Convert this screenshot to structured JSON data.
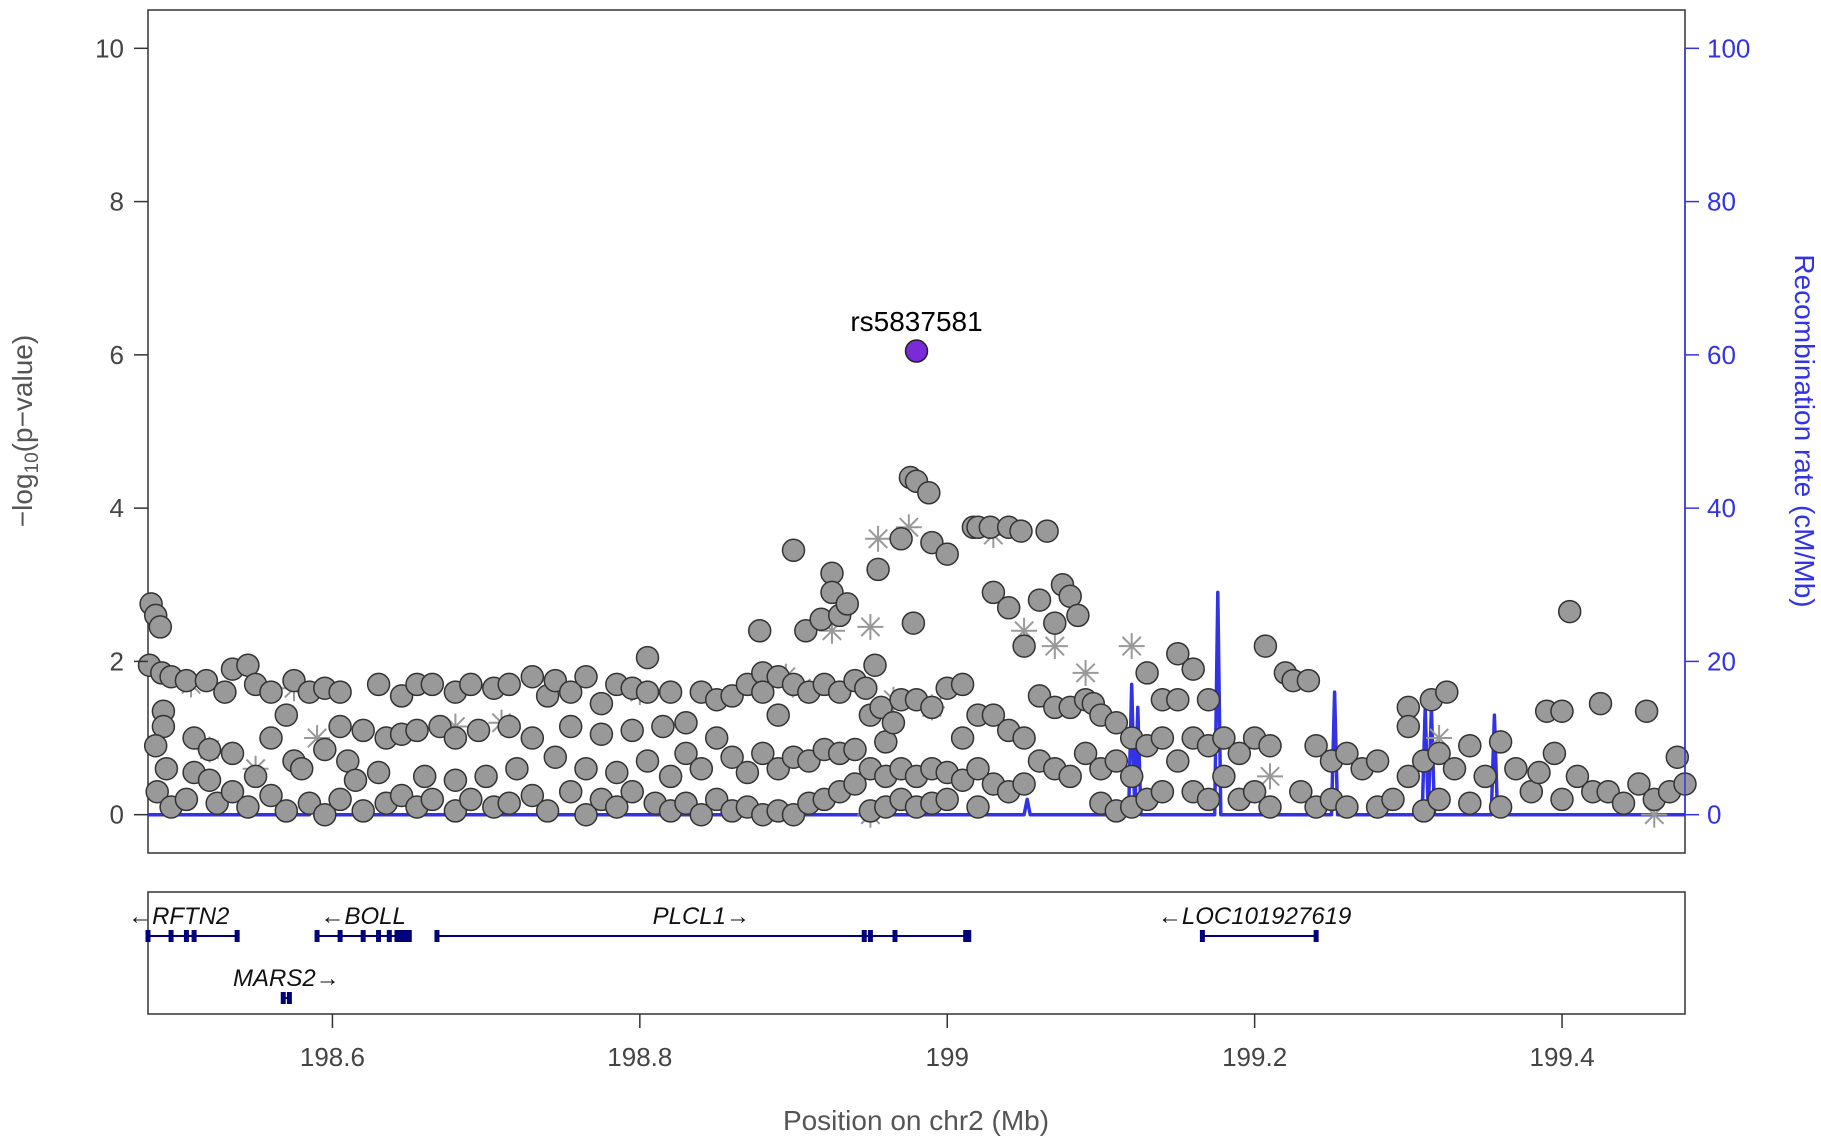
{
  "chart_data": {
    "type": "scatter",
    "xlabel": "Position on chr2 (Mb)",
    "ylabel_main": "−log",
    "ylabel_sub": "10",
    "ylabel_tail": "(p−value)",
    "y2label": "Recombination rate (cM/Mb)",
    "xlim": [
      198.48,
      199.48
    ],
    "ylim": [
      -0.5,
      10.5
    ],
    "y2lim": [
      -5,
      105
    ],
    "x_ticks": [
      "198.6",
      "198.8",
      "199",
      "199.2",
      "199.4"
    ],
    "x_tick_values": [
      198.6,
      198.8,
      199.0,
      199.2,
      199.4
    ],
    "y_ticks": [
      "0",
      "2",
      "4",
      "6",
      "8",
      "10"
    ],
    "y_tick_values": [
      0,
      2,
      4,
      6,
      8,
      10
    ],
    "y2_ticks": [
      "0",
      "20",
      "40",
      "60",
      "80",
      "100"
    ],
    "y2_tick_values": [
      0,
      20,
      40,
      60,
      80,
      100
    ],
    "colors": {
      "point_fill": "#999999",
      "point_edge": "#333333",
      "lead_fill": "#7a2ad6",
      "recomb": "#3333e6",
      "axis2": "#3333e6",
      "gene": "#00007a",
      "asterisk": "#999999"
    },
    "lead_snp": {
      "label": "rs5837581",
      "x": 198.98,
      "y": 6.05
    },
    "recombination": [
      {
        "x": 198.48,
        "y": 0
      },
      {
        "x": 198.585,
        "y": 0
      },
      {
        "x": 198.587,
        "y": 0.8
      },
      {
        "x": 198.589,
        "y": 0
      },
      {
        "x": 198.68,
        "y": 0
      },
      {
        "x": 198.682,
        "y": 0.9
      },
      {
        "x": 198.684,
        "y": 0
      },
      {
        "x": 198.78,
        "y": 0
      },
      {
        "x": 198.785,
        "y": 1.5
      },
      {
        "x": 198.79,
        "y": 0
      },
      {
        "x": 198.95,
        "y": 0
      },
      {
        "x": 198.952,
        "y": 1.0
      },
      {
        "x": 198.954,
        "y": 0
      },
      {
        "x": 199.05,
        "y": 0
      },
      {
        "x": 199.052,
        "y": 2.0
      },
      {
        "x": 199.054,
        "y": 0
      },
      {
        "x": 199.118,
        "y": 0
      },
      {
        "x": 199.12,
        "y": 17
      },
      {
        "x": 199.122,
        "y": 0
      },
      {
        "x": 199.124,
        "y": 14
      },
      {
        "x": 199.126,
        "y": 0
      },
      {
        "x": 199.174,
        "y": 0
      },
      {
        "x": 199.176,
        "y": 29
      },
      {
        "x": 199.178,
        "y": 0
      },
      {
        "x": 199.25,
        "y": 0
      },
      {
        "x": 199.252,
        "y": 16
      },
      {
        "x": 199.254,
        "y": 0
      },
      {
        "x": 199.309,
        "y": 0
      },
      {
        "x": 199.311,
        "y": 14
      },
      {
        "x": 199.313,
        "y": 0
      },
      {
        "x": 199.315,
        "y": 14
      },
      {
        "x": 199.317,
        "y": 0
      },
      {
        "x": 199.354,
        "y": 0
      },
      {
        "x": 199.356,
        "y": 13
      },
      {
        "x": 199.358,
        "y": 0
      },
      {
        "x": 199.48,
        "y": 0
      }
    ],
    "points": [
      [
        198.482,
        2.75
      ],
      [
        198.485,
        2.6
      ],
      [
        198.488,
        2.45
      ],
      [
        198.481,
        1.95
      ],
      [
        198.489,
        1.85
      ],
      [
        198.495,
        1.8
      ],
      [
        198.49,
        1.35
      ],
      [
        198.49,
        1.15
      ],
      [
        198.485,
        0.9
      ],
      [
        198.492,
        0.6
      ],
      [
        198.486,
        0.3
      ],
      [
        198.495,
        0.1
      ],
      [
        198.505,
        1.75
      ],
      [
        198.51,
        1.0
      ],
      [
        198.51,
        0.55
      ],
      [
        198.505,
        0.2
      ],
      [
        198.518,
        1.75
      ],
      [
        198.52,
        0.85
      ],
      [
        198.52,
        0.45
      ],
      [
        198.525,
        0.15
      ],
      [
        198.535,
        1.9
      ],
      [
        198.53,
        1.6
      ],
      [
        198.535,
        0.8
      ],
      [
        198.535,
        0.3
      ],
      [
        198.545,
        1.95
      ],
      [
        198.55,
        1.7
      ],
      [
        198.55,
        0.5
      ],
      [
        198.545,
        0.1
      ],
      [
        198.56,
        1.6
      ],
      [
        198.56,
        1.0
      ],
      [
        198.56,
        0.25
      ],
      [
        198.57,
        1.3
      ],
      [
        198.575,
        1.75
      ],
      [
        198.575,
        0.7
      ],
      [
        198.57,
        0.05
      ],
      [
        198.585,
        1.6
      ],
      [
        198.58,
        0.6
      ],
      [
        198.585,
        0.15
      ],
      [
        198.595,
        1.65
      ],
      [
        198.595,
        0.85
      ],
      [
        198.595,
        0.0
      ],
      [
        198.605,
        1.6
      ],
      [
        198.605,
        1.15
      ],
      [
        198.61,
        0.7
      ],
      [
        198.605,
        0.2
      ],
      [
        198.62,
        1.1
      ],
      [
        198.615,
        0.45
      ],
      [
        198.62,
        0.05
      ],
      [
        198.63,
        1.7
      ],
      [
        198.635,
        1.0
      ],
      [
        198.63,
        0.55
      ],
      [
        198.635,
        0.15
      ],
      [
        198.645,
        1.55
      ],
      [
        198.645,
        1.05
      ],
      [
        198.645,
        0.25
      ],
      [
        198.655,
        1.7
      ],
      [
        198.655,
        1.1
      ],
      [
        198.66,
        0.5
      ],
      [
        198.655,
        0.1
      ],
      [
        198.665,
        1.7
      ],
      [
        198.67,
        1.15
      ],
      [
        198.665,
        0.2
      ],
      [
        198.68,
        1.6
      ],
      [
        198.68,
        1.0
      ],
      [
        198.68,
        0.45
      ],
      [
        198.68,
        0.05
      ],
      [
        198.69,
        1.7
      ],
      [
        198.695,
        1.1
      ],
      [
        198.69,
        0.2
      ],
      [
        198.705,
        1.65
      ],
      [
        198.7,
        0.5
      ],
      [
        198.705,
        0.1
      ],
      [
        198.715,
        1.7
      ],
      [
        198.715,
        1.15
      ],
      [
        198.72,
        0.6
      ],
      [
        198.715,
        0.15
      ],
      [
        198.73,
        1.8
      ],
      [
        198.73,
        1.0
      ],
      [
        198.73,
        0.25
      ],
      [
        198.74,
        1.55
      ],
      [
        198.745,
        1.75
      ],
      [
        198.745,
        0.75
      ],
      [
        198.74,
        0.05
      ],
      [
        198.755,
        1.6
      ],
      [
        198.755,
        1.15
      ],
      [
        198.755,
        0.3
      ],
      [
        198.765,
        1.8
      ],
      [
        198.765,
        0.6
      ],
      [
        198.765,
        0.0
      ],
      [
        198.775,
        1.45
      ],
      [
        198.775,
        1.05
      ],
      [
        198.775,
        0.2
      ],
      [
        198.785,
        1.7
      ],
      [
        198.785,
        0.55
      ],
      [
        198.785,
        0.1
      ],
      [
        198.795,
        1.65
      ],
      [
        198.795,
        1.1
      ],
      [
        198.795,
        0.3
      ],
      [
        198.805,
        2.05
      ],
      [
        198.805,
        1.6
      ],
      [
        198.805,
        0.7
      ],
      [
        198.81,
        0.15
      ],
      [
        198.815,
        1.15
      ],
      [
        198.82,
        1.6
      ],
      [
        198.82,
        0.5
      ],
      [
        198.82,
        0.05
      ],
      [
        198.83,
        1.2
      ],
      [
        198.83,
        0.8
      ],
      [
        198.83,
        0.15
      ],
      [
        198.84,
        1.6
      ],
      [
        198.84,
        0.6
      ],
      [
        198.84,
        0.0
      ],
      [
        198.85,
        1.5
      ],
      [
        198.85,
        1.0
      ],
      [
        198.85,
        0.2
      ],
      [
        198.86,
        1.55
      ],
      [
        198.86,
        0.75
      ],
      [
        198.86,
        0.05
      ],
      [
        198.87,
        1.7
      ],
      [
        198.87,
        0.55
      ],
      [
        198.87,
        0.1
      ],
      [
        198.878,
        2.4
      ],
      [
        198.88,
        1.85
      ],
      [
        198.88,
        1.6
      ],
      [
        198.88,
        0.8
      ],
      [
        198.88,
        0.0
      ],
      [
        198.89,
        1.8
      ],
      [
        198.89,
        1.3
      ],
      [
        198.89,
        0.6
      ],
      [
        198.89,
        0.05
      ],
      [
        198.9,
        3.45
      ],
      [
        198.9,
        1.7
      ],
      [
        198.9,
        0.75
      ],
      [
        198.9,
        0.0
      ],
      [
        198.908,
        2.4
      ],
      [
        198.91,
        1.6
      ],
      [
        198.91,
        0.7
      ],
      [
        198.91,
        0.15
      ],
      [
        198.918,
        2.55
      ],
      [
        198.92,
        1.7
      ],
      [
        198.92,
        0.85
      ],
      [
        198.92,
        0.2
      ],
      [
        198.925,
        3.15
      ],
      [
        198.925,
        2.9
      ],
      [
        198.93,
        2.6
      ],
      [
        198.93,
        1.6
      ],
      [
        198.93,
        0.8
      ],
      [
        198.93,
        0.3
      ],
      [
        198.935,
        2.75
      ],
      [
        198.94,
        1.75
      ],
      [
        198.94,
        0.85
      ],
      [
        198.94,
        0.4
      ],
      [
        198.947,
        1.65
      ],
      [
        198.95,
        1.3
      ],
      [
        198.95,
        0.6
      ],
      [
        198.95,
        0.05
      ],
      [
        198.953,
        1.95
      ],
      [
        198.955,
        3.2
      ],
      [
        198.957,
        1.4
      ],
      [
        198.96,
        0.95
      ],
      [
        198.96,
        0.5
      ],
      [
        198.96,
        0.1
      ],
      [
        198.965,
        1.2
      ],
      [
        198.97,
        3.6
      ],
      [
        198.97,
        1.5
      ],
      [
        198.97,
        0.6
      ],
      [
        198.97,
        0.2
      ],
      [
        198.976,
        4.4
      ],
      [
        198.978,
        2.5
      ],
      [
        198.98,
        4.35
      ],
      [
        198.98,
        1.5
      ],
      [
        198.98,
        0.5
      ],
      [
        198.98,
        0.1
      ],
      [
        198.988,
        4.2
      ],
      [
        198.99,
        3.55
      ],
      [
        198.99,
        1.4
      ],
      [
        198.99,
        0.6
      ],
      [
        198.99,
        0.15
      ],
      [
        199.0,
        3.4
      ],
      [
        199.0,
        1.65
      ],
      [
        199.0,
        0.55
      ],
      [
        199.0,
        0.2
      ],
      [
        199.01,
        1.7
      ],
      [
        199.01,
        1.0
      ],
      [
        199.01,
        0.45
      ],
      [
        199.017,
        3.75
      ],
      [
        199.02,
        3.75
      ],
      [
        199.02,
        1.3
      ],
      [
        199.02,
        0.6
      ],
      [
        199.02,
        0.1
      ],
      [
        199.028,
        3.75
      ],
      [
        199.03,
        2.9
      ],
      [
        199.03,
        1.3
      ],
      [
        199.03,
        0.4
      ],
      [
        199.04,
        3.75
      ],
      [
        199.04,
        2.7
      ],
      [
        199.04,
        1.1
      ],
      [
        199.04,
        0.3
      ],
      [
        199.048,
        3.7
      ],
      [
        199.05,
        2.2
      ],
      [
        199.05,
        1.0
      ],
      [
        199.05,
        0.4
      ],
      [
        199.06,
        2.8
      ],
      [
        199.06,
        1.55
      ],
      [
        199.06,
        0.7
      ],
      [
        199.065,
        3.7
      ],
      [
        199.07,
        2.5
      ],
      [
        199.07,
        1.4
      ],
      [
        199.07,
        0.6
      ],
      [
        199.075,
        3.0
      ],
      [
        199.08,
        2.85
      ],
      [
        199.08,
        1.4
      ],
      [
        199.08,
        0.5
      ],
      [
        199.085,
        2.6
      ],
      [
        199.09,
        1.5
      ],
      [
        199.09,
        0.8
      ],
      [
        199.095,
        1.45
      ],
      [
        199.1,
        1.3
      ],
      [
        199.1,
        0.6
      ],
      [
        199.1,
        0.15
      ],
      [
        199.11,
        1.2
      ],
      [
        199.11,
        0.7
      ],
      [
        199.11,
        0.05
      ],
      [
        199.12,
        1.0
      ],
      [
        199.12,
        0.5
      ],
      [
        199.12,
        0.1
      ],
      [
        199.13,
        1.85
      ],
      [
        199.13,
        0.9
      ],
      [
        199.13,
        0.2
      ],
      [
        199.14,
        1.5
      ],
      [
        199.14,
        1.0
      ],
      [
        199.14,
        0.3
      ],
      [
        199.15,
        2.1
      ],
      [
        199.15,
        1.5
      ],
      [
        199.15,
        0.7
      ],
      [
        199.16,
        1.9
      ],
      [
        199.16,
        1.0
      ],
      [
        199.16,
        0.3
      ],
      [
        199.17,
        1.5
      ],
      [
        199.17,
        0.9
      ],
      [
        199.17,
        0.2
      ],
      [
        199.18,
        1.0
      ],
      [
        199.18,
        0.5
      ],
      [
        199.19,
        0.8
      ],
      [
        199.19,
        0.2
      ],
      [
        199.2,
        1.0
      ],
      [
        199.2,
        0.3
      ],
      [
        199.207,
        2.2
      ],
      [
        199.21,
        0.9
      ],
      [
        199.21,
        0.1
      ],
      [
        199.22,
        1.85
      ],
      [
        199.225,
        1.75
      ],
      [
        199.23,
        0.3
      ],
      [
        199.235,
        1.75
      ],
      [
        199.24,
        0.9
      ],
      [
        199.24,
        0.1
      ],
      [
        199.25,
        0.7
      ],
      [
        199.25,
        0.2
      ],
      [
        199.26,
        0.8
      ],
      [
        199.26,
        0.1
      ],
      [
        199.27,
        0.6
      ],
      [
        199.28,
        0.7
      ],
      [
        199.28,
        0.1
      ],
      [
        199.29,
        0.2
      ],
      [
        199.3,
        1.4
      ],
      [
        199.3,
        1.15
      ],
      [
        199.3,
        0.5
      ],
      [
        199.31,
        0.7
      ],
      [
        199.31,
        0.05
      ],
      [
        199.315,
        1.5
      ],
      [
        199.32,
        0.8
      ],
      [
        199.32,
        0.2
      ],
      [
        199.325,
        1.6
      ],
      [
        199.33,
        0.6
      ],
      [
        199.34,
        0.9
      ],
      [
        199.34,
        0.15
      ],
      [
        199.35,
        0.5
      ],
      [
        199.36,
        0.95
      ],
      [
        199.36,
        0.1
      ],
      [
        199.37,
        0.6
      ],
      [
        199.38,
        0.3
      ],
      [
        199.385,
        0.55
      ],
      [
        199.39,
        1.35
      ],
      [
        199.395,
        0.8
      ],
      [
        199.4,
        1.35
      ],
      [
        199.4,
        0.2
      ],
      [
        199.405,
        2.65
      ],
      [
        199.41,
        0.5
      ],
      [
        199.42,
        0.3
      ],
      [
        199.425,
        1.45
      ],
      [
        199.43,
        0.3
      ],
      [
        199.44,
        0.15
      ],
      [
        199.45,
        0.4
      ],
      [
        199.455,
        1.35
      ],
      [
        199.46,
        0.2
      ],
      [
        199.47,
        0.3
      ],
      [
        199.475,
        0.75
      ],
      [
        199.48,
        0.4
      ]
    ],
    "asterisks": [
      [
        198.508,
        1.7
      ],
      [
        198.52,
        0.85
      ],
      [
        198.55,
        0.6
      ],
      [
        198.575,
        1.65
      ],
      [
        198.59,
        1.0
      ],
      [
        198.68,
        1.15
      ],
      [
        198.71,
        1.2
      ],
      [
        198.8,
        1.6
      ],
      [
        198.895,
        1.8
      ],
      [
        198.905,
        1.65
      ],
      [
        198.925,
        2.4
      ],
      [
        198.95,
        2.45
      ],
      [
        198.955,
        3.6
      ],
      [
        198.965,
        1.5
      ],
      [
        198.975,
        3.75
      ],
      [
        198.99,
        1.4
      ],
      [
        199.03,
        3.65
      ],
      [
        199.05,
        2.4
      ],
      [
        199.07,
        2.2
      ],
      [
        199.09,
        1.85
      ],
      [
        199.12,
        2.2
      ],
      [
        199.21,
        0.5
      ],
      [
        199.32,
        1.0
      ],
      [
        198.95,
        0.0
      ],
      [
        199.46,
        0.0
      ]
    ],
    "genes": [
      {
        "name": "RFTN2",
        "label": "←RFTN2",
        "start": 198.48,
        "end": 198.538,
        "exons": [
          198.48,
          198.495,
          198.505,
          198.51,
          198.538
        ],
        "row": 0,
        "label_x": 198.5
      },
      {
        "name": "BOLL",
        "label": "←BOLL",
        "start": 198.59,
        "end": 198.65,
        "exons": [
          198.59,
          198.605,
          198.62,
          198.63,
          198.637,
          198.642,
          198.645,
          198.648,
          198.65
        ],
        "row": 0,
        "label_x": 198.62
      },
      {
        "name": "PLCL1",
        "label": "PLCL1→",
        "start": 198.668,
        "end": 199.014,
        "exons": [
          198.668,
          198.946,
          198.95,
          198.966,
          199.012,
          199.014
        ],
        "row": 0,
        "label_x": 198.84
      },
      {
        "name": "LOC101927619",
        "label": "←LOC101927619",
        "start": 199.166,
        "end": 199.24,
        "exons": [
          199.166,
          199.24
        ],
        "row": 0,
        "label_x": 199.2
      },
      {
        "name": "MARS2",
        "label": "MARS2→",
        "start": 198.568,
        "end": 198.572,
        "exons": [
          198.568,
          198.572
        ],
        "row": 1,
        "label_x": 198.57
      }
    ]
  }
}
